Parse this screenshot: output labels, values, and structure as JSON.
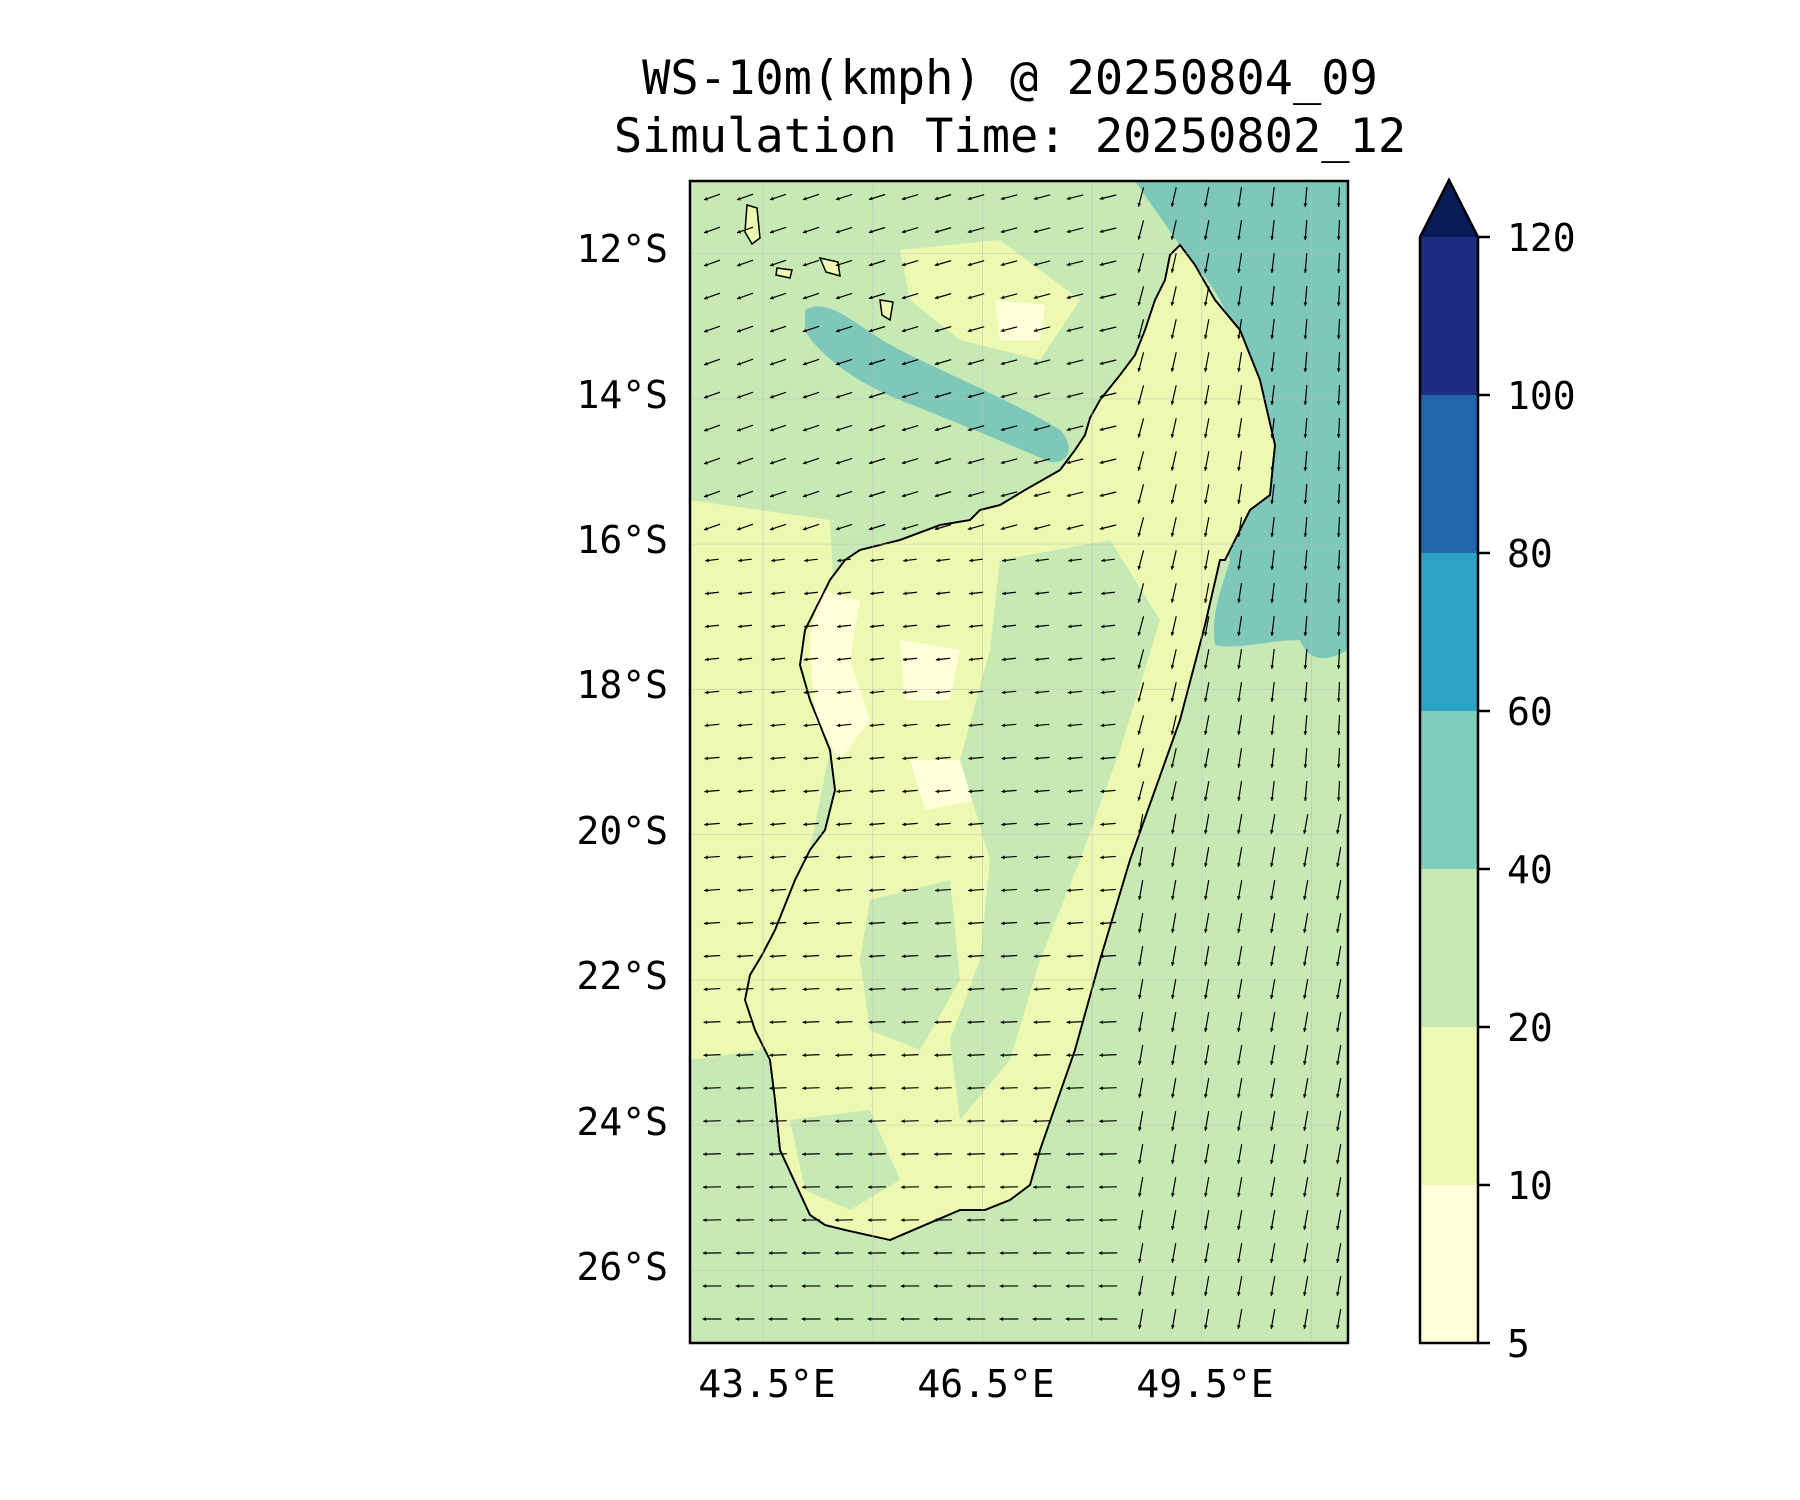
{
  "title": {
    "line1": "WS-10m(kmph) @ 20250804_09",
    "line2": "Simulation Time: 20250802_12"
  },
  "map": {
    "region": "Madagascar",
    "lat_range": [
      -27,
      -11
    ],
    "lon_range": [
      42.5,
      51.5
    ],
    "lat_labels": [
      "12°S",
      "14°S",
      "16°S",
      "18°S",
      "20°S",
      "22°S",
      "24°S",
      "26°S"
    ],
    "lon_labels": [
      "43.5°E",
      "46.5°E",
      "49.5°E"
    ]
  },
  "colorbar": {
    "levels": [
      "5",
      "10",
      "20",
      "40",
      "60",
      "80",
      "100",
      "120"
    ],
    "colors": [
      "#ffffd9",
      "#edf8b1",
      "#c7e9b4",
      "#7fcdbb",
      "#2fa3c4",
      "#2165aa",
      "#1e2d80",
      "#081d58"
    ],
    "extend": "max"
  },
  "palette": {
    "sea": "#c7e9b4",
    "land": "#edf8b1",
    "calm": "#ffffd9",
    "strong": "#7ec8ba",
    "coast": "#000000",
    "arrow": "#000000",
    "grid": "#bbbbbb"
  }
}
